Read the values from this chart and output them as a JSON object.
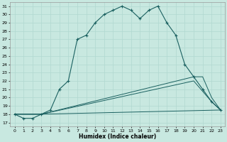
{
  "xlabel": "Humidex (Indice chaleur)",
  "xlim": [
    -0.5,
    23.5
  ],
  "ylim": [
    16.5,
    31.5
  ],
  "xticks": [
    0,
    1,
    2,
    3,
    4,
    5,
    6,
    7,
    8,
    9,
    10,
    11,
    12,
    13,
    14,
    15,
    16,
    17,
    18,
    19,
    20,
    21,
    22,
    23
  ],
  "yticks": [
    17,
    18,
    19,
    20,
    21,
    22,
    23,
    24,
    25,
    26,
    27,
    28,
    29,
    30,
    31
  ],
  "bg_color": "#c8e8e0",
  "line_color": "#1a6060",
  "grid_color": "#b0d8d0",
  "curve1_x": [
    0,
    1,
    2,
    3,
    4,
    5,
    6,
    7,
    8,
    9,
    10,
    11,
    12,
    13,
    14,
    15,
    16,
    17,
    18,
    19,
    20,
    21,
    22,
    23
  ],
  "curve1_y": [
    18,
    17.5,
    17.5,
    18,
    18.5,
    21,
    22,
    27,
    27.5,
    29,
    30,
    30.5,
    31,
    30.5,
    29.5,
    30.5,
    31,
    29,
    27.5,
    24,
    22.5,
    21,
    19.5,
    18.5
  ],
  "line2_x": [
    0,
    3,
    23
  ],
  "line2_y": [
    18,
    18,
    18.5
  ],
  "line3_x": [
    0,
    3,
    20,
    22,
    23
  ],
  "line3_y": [
    18,
    18,
    22,
    19.5,
    18.5
  ],
  "line4_x": [
    0,
    3,
    20,
    21,
    22,
    23
  ],
  "line4_y": [
    18,
    18,
    22.5,
    22.5,
    20,
    18.5
  ]
}
